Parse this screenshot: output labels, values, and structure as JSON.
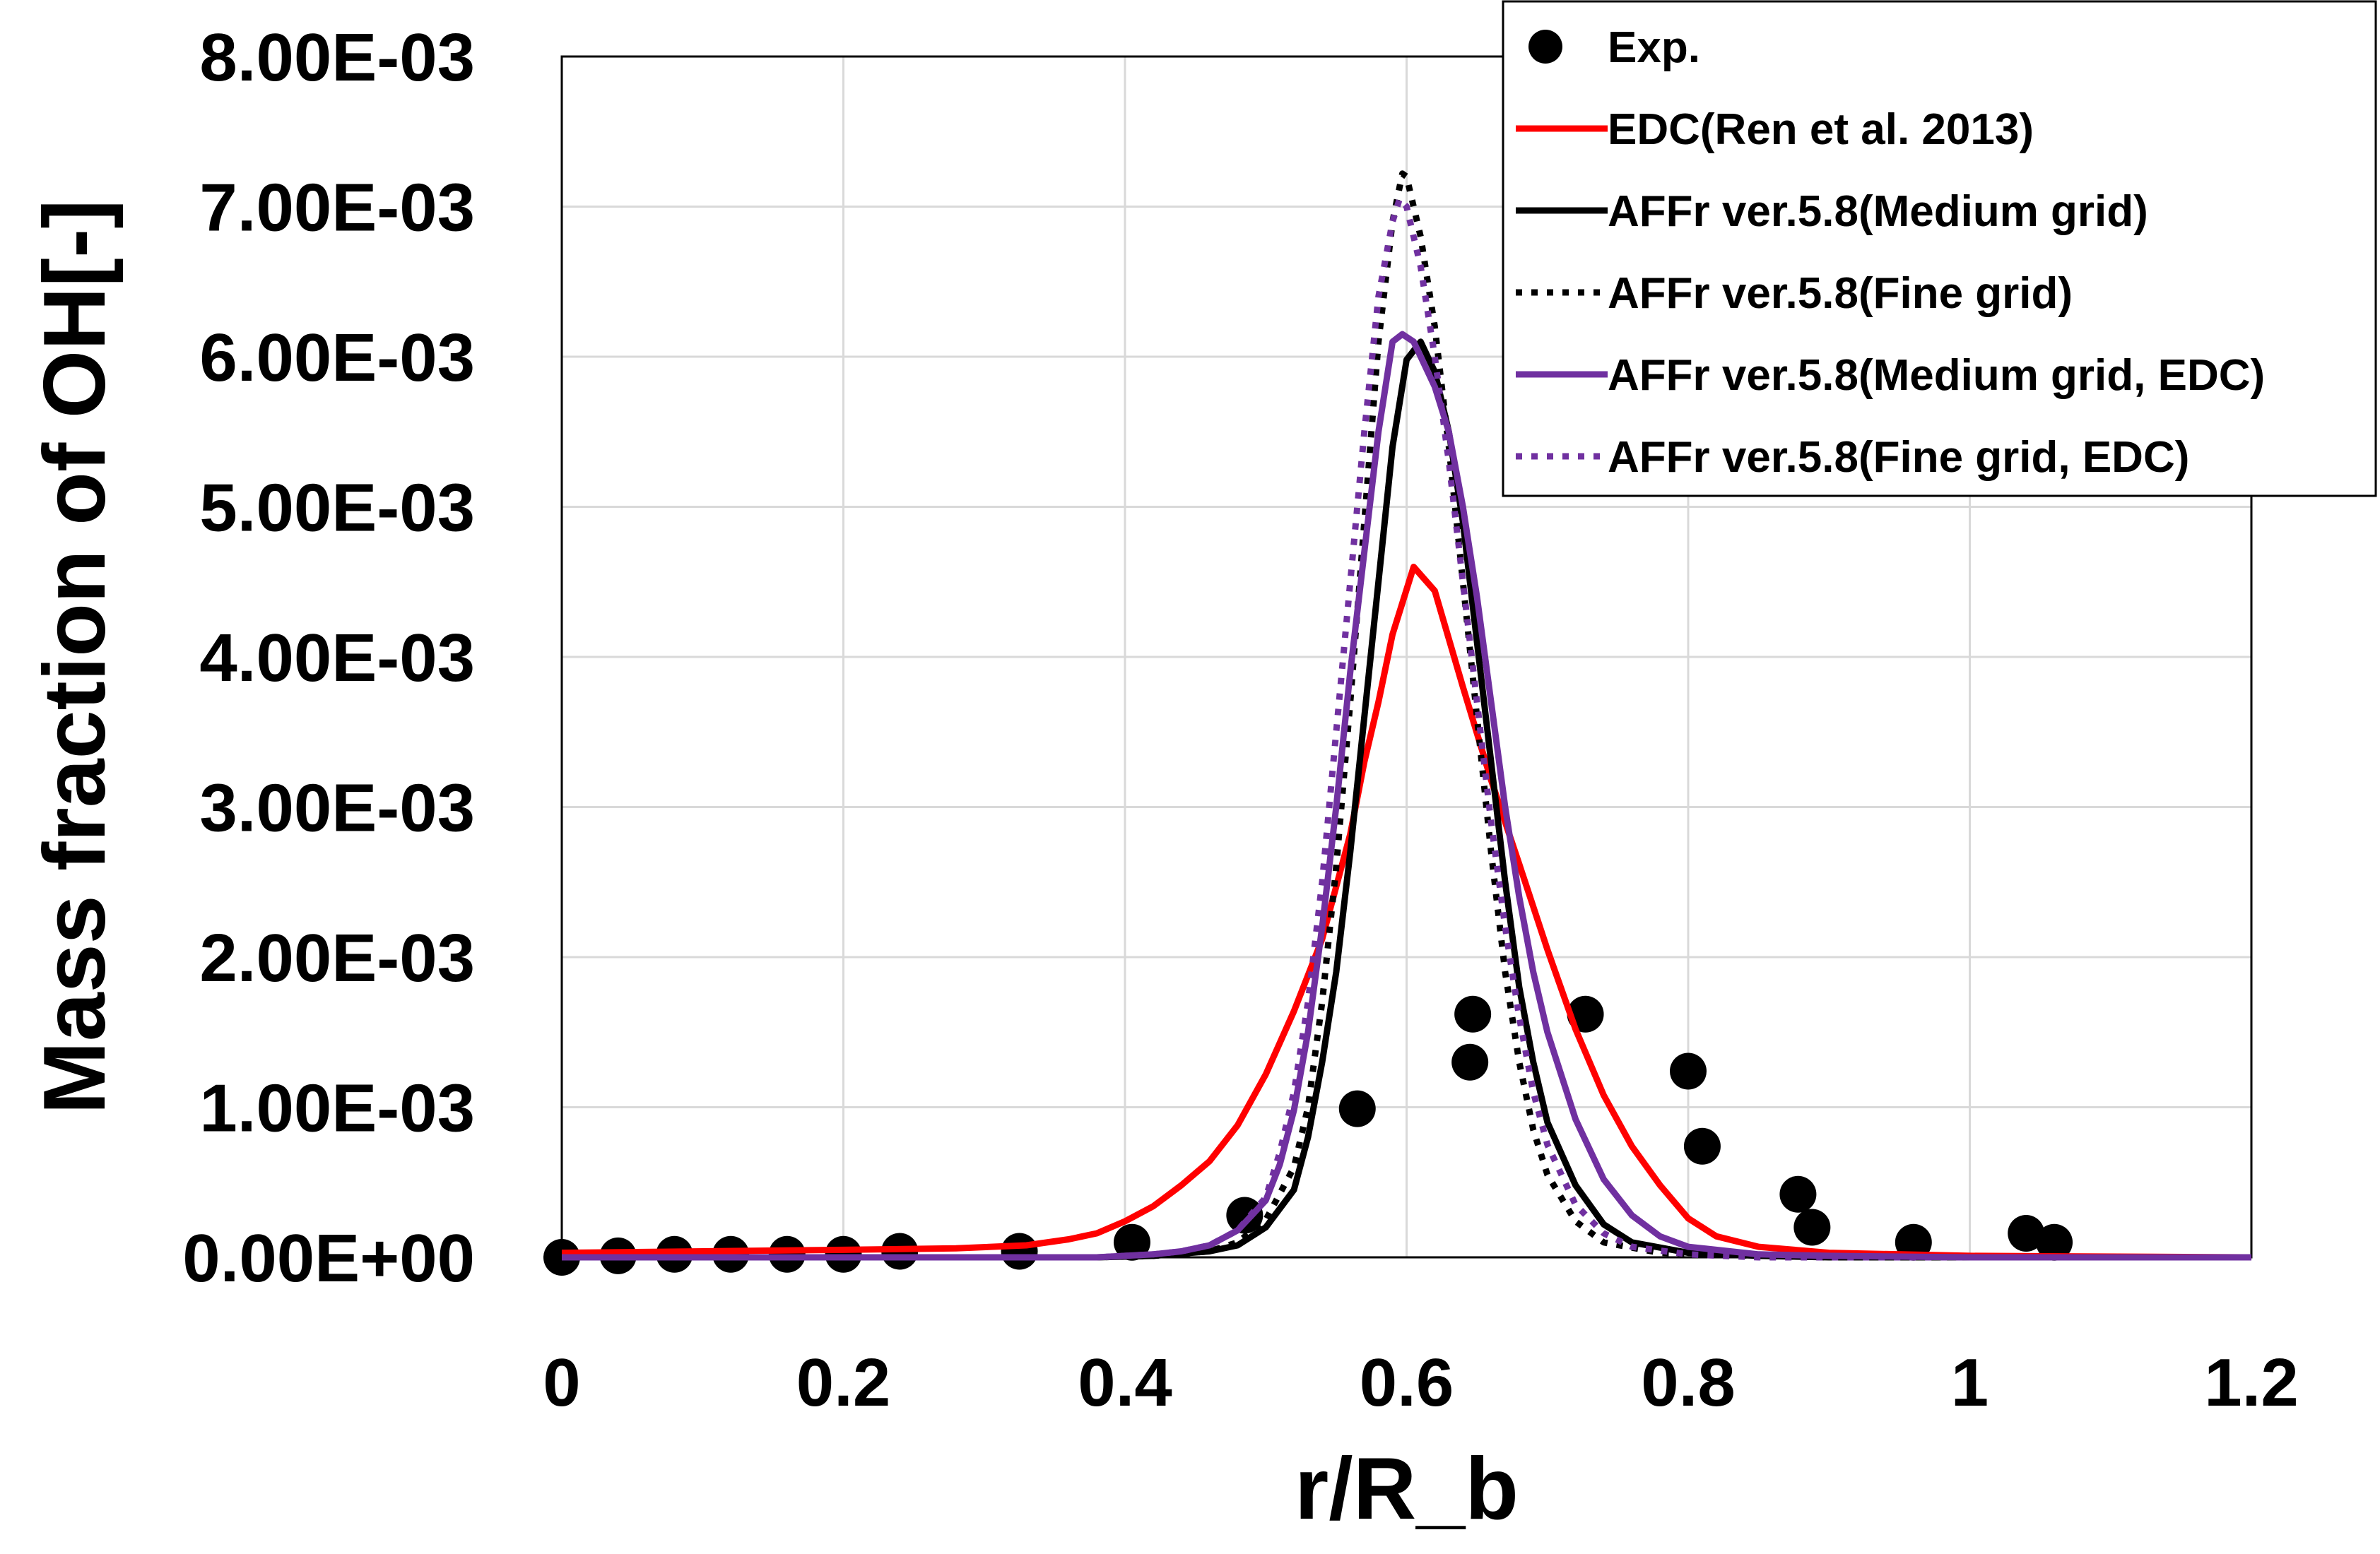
{
  "chart_data": {
    "type": "line",
    "title": "",
    "xlabel": "r/R_b",
    "ylabel": "Mass fraction of OH[-]",
    "xlim": [
      0,
      1.2
    ],
    "ylim": [
      0,
      0.008
    ],
    "xticks": [
      0,
      0.2,
      0.4,
      0.6,
      0.8,
      1,
      1.2
    ],
    "xtick_labels": [
      "0",
      "0.2",
      "0.4",
      "0.6",
      "0.8",
      "1",
      "1.2"
    ],
    "yticks": [
      0,
      0.001,
      0.002,
      0.003,
      0.004,
      0.005,
      0.006,
      0.007,
      0.008
    ],
    "ytick_labels": [
      "0.00E+00",
      "1.00E-03",
      "2.00E-03",
      "3.00E-03",
      "4.00E-03",
      "5.00E-03",
      "6.00E-03",
      "7.00E-03",
      "8.00E-03"
    ],
    "grid": true,
    "legend_position": "top-right",
    "series": [
      {
        "name": "Exp.",
        "kind": "scatter",
        "color": "#000000",
        "points": [
          [
            0.0,
            0.0
          ],
          [
            0.04,
            1e-05
          ],
          [
            0.08,
            2e-05
          ],
          [
            0.12,
            2e-05
          ],
          [
            0.16,
            2e-05
          ],
          [
            0.2,
            2e-05
          ],
          [
            0.24,
            4e-05
          ],
          [
            0.325,
            4e-05
          ],
          [
            0.405,
            0.0001
          ],
          [
            0.485,
            0.00028
          ],
          [
            0.565,
            0.00099
          ],
          [
            0.645,
            0.0013
          ],
          [
            0.647,
            0.00162
          ],
          [
            0.727,
            0.00162
          ],
          [
            0.8,
            0.00124
          ],
          [
            0.81,
            0.00074
          ],
          [
            0.878,
            0.00042
          ],
          [
            0.888,
            0.0002
          ],
          [
            0.96,
            0.0001
          ],
          [
            1.04,
            0.00016
          ],
          [
            1.06,
            0.0001
          ]
        ]
      },
      {
        "name": "EDC(Ren et al. 2013)",
        "kind": "line",
        "color": "#ff0000",
        "dash": "solid",
        "points": [
          [
            0.0,
            3e-05
          ],
          [
            0.1,
            4e-05
          ],
          [
            0.2,
            5e-05
          ],
          [
            0.28,
            6e-05
          ],
          [
            0.33,
            8e-05
          ],
          [
            0.36,
            0.00012
          ],
          [
            0.38,
            0.00016
          ],
          [
            0.4,
            0.00024
          ],
          [
            0.42,
            0.00034
          ],
          [
            0.44,
            0.00048
          ],
          [
            0.46,
            0.00064
          ],
          [
            0.48,
            0.00088
          ],
          [
            0.5,
            0.00122
          ],
          [
            0.52,
            0.00164
          ],
          [
            0.54,
            0.00212
          ],
          [
            0.56,
            0.00282
          ],
          [
            0.57,
            0.0033
          ],
          [
            0.58,
            0.0037
          ],
          [
            0.59,
            0.00415
          ],
          [
            0.605,
            0.0046
          ],
          [
            0.62,
            0.00444
          ],
          [
            0.64,
            0.0038
          ],
          [
            0.66,
            0.00318
          ],
          [
            0.68,
            0.00262
          ],
          [
            0.7,
            0.00205
          ],
          [
            0.72,
            0.00152
          ],
          [
            0.74,
            0.00108
          ],
          [
            0.76,
            0.00074
          ],
          [
            0.78,
            0.00048
          ],
          [
            0.8,
            0.00026
          ],
          [
            0.82,
            0.00014
          ],
          [
            0.85,
            7e-05
          ],
          [
            0.9,
            3e-05
          ],
          [
            1.0,
            1e-05
          ],
          [
            1.2,
            0.0
          ]
        ]
      },
      {
        "name": "AFFr ver.5.8(Medium grid)",
        "kind": "line",
        "color": "#000000",
        "dash": "solid",
        "points": [
          [
            0.0,
            0.0
          ],
          [
            0.38,
            0.0
          ],
          [
            0.42,
            1e-05
          ],
          [
            0.46,
            4e-05
          ],
          [
            0.48,
            8e-05
          ],
          [
            0.5,
            0.0002
          ],
          [
            0.52,
            0.00045
          ],
          [
            0.53,
            0.0008
          ],
          [
            0.54,
            0.0013
          ],
          [
            0.55,
            0.0019
          ],
          [
            0.56,
            0.0027
          ],
          [
            0.57,
            0.0036
          ],
          [
            0.58,
            0.0045
          ],
          [
            0.59,
            0.0054
          ],
          [
            0.6,
            0.00598
          ],
          [
            0.61,
            0.0061
          ],
          [
            0.62,
            0.0059
          ],
          [
            0.63,
            0.0055
          ],
          [
            0.64,
            0.0049
          ],
          [
            0.65,
            0.0041
          ],
          [
            0.66,
            0.0033
          ],
          [
            0.67,
            0.0025
          ],
          [
            0.68,
            0.0018
          ],
          [
            0.69,
            0.0013
          ],
          [
            0.7,
            0.0009
          ],
          [
            0.72,
            0.00048
          ],
          [
            0.74,
            0.00022
          ],
          [
            0.76,
            0.0001
          ],
          [
            0.8,
            3e-05
          ],
          [
            0.85,
            1e-05
          ],
          [
            0.9,
            0.0
          ],
          [
            1.2,
            0.0
          ]
        ]
      },
      {
        "name": "AFFr ver.5.8(Fine grid)",
        "kind": "line",
        "color": "#000000",
        "dash": "dotted",
        "points": [
          [
            0.0,
            0.0
          ],
          [
            0.38,
            0.0
          ],
          [
            0.42,
            1e-05
          ],
          [
            0.46,
            4e-05
          ],
          [
            0.48,
            0.0001
          ],
          [
            0.5,
            0.00025
          ],
          [
            0.52,
            0.0006
          ],
          [
            0.53,
            0.001
          ],
          [
            0.54,
            0.0017
          ],
          [
            0.55,
            0.0026
          ],
          [
            0.56,
            0.0037
          ],
          [
            0.57,
            0.0049
          ],
          [
            0.58,
            0.0061
          ],
          [
            0.59,
            0.0069
          ],
          [
            0.597,
            0.00722
          ],
          [
            0.6,
            0.0072
          ],
          [
            0.61,
            0.0068
          ],
          [
            0.62,
            0.0062
          ],
          [
            0.63,
            0.0054
          ],
          [
            0.64,
            0.0045
          ],
          [
            0.65,
            0.0036
          ],
          [
            0.66,
            0.0027
          ],
          [
            0.67,
            0.0019
          ],
          [
            0.68,
            0.0013
          ],
          [
            0.69,
            0.00085
          ],
          [
            0.7,
            0.00055
          ],
          [
            0.72,
            0.00024
          ],
          [
            0.74,
            0.0001
          ],
          [
            0.78,
            3e-05
          ],
          [
            0.85,
            1e-05
          ],
          [
            0.9,
            0.0
          ],
          [
            1.2,
            0.0
          ]
        ]
      },
      {
        "name": "AFFr ver.5.8(Medium grid, EDC)",
        "kind": "line",
        "color": "#7030a0",
        "dash": "solid",
        "points": [
          [
            0.0,
            0.0
          ],
          [
            0.38,
            0.0
          ],
          [
            0.42,
            2e-05
          ],
          [
            0.44,
            4e-05
          ],
          [
            0.46,
            8e-05
          ],
          [
            0.48,
            0.00018
          ],
          [
            0.5,
            0.00038
          ],
          [
            0.51,
            0.00062
          ],
          [
            0.52,
            0.00098
          ],
          [
            0.53,
            0.0015
          ],
          [
            0.54,
            0.0022
          ],
          [
            0.55,
            0.003
          ],
          [
            0.56,
            0.0039
          ],
          [
            0.57,
            0.0047
          ],
          [
            0.58,
            0.0055
          ],
          [
            0.59,
            0.0061
          ],
          [
            0.597,
            0.00615
          ],
          [
            0.605,
            0.0061
          ],
          [
            0.62,
            0.0058
          ],
          [
            0.63,
            0.0055
          ],
          [
            0.64,
            0.005
          ],
          [
            0.65,
            0.0044
          ],
          [
            0.66,
            0.0037
          ],
          [
            0.67,
            0.003
          ],
          [
            0.68,
            0.0024
          ],
          [
            0.69,
            0.0019
          ],
          [
            0.7,
            0.0015
          ],
          [
            0.72,
            0.00092
          ],
          [
            0.74,
            0.00052
          ],
          [
            0.76,
            0.00028
          ],
          [
            0.78,
            0.00014
          ],
          [
            0.8,
            7e-05
          ],
          [
            0.85,
            2e-05
          ],
          [
            0.9,
            1e-05
          ],
          [
            1.0,
            0.0
          ],
          [
            1.2,
            0.0
          ]
        ]
      },
      {
        "name": "AFFr ver.5.8(Fine grid, EDC)",
        "kind": "line",
        "color": "#7030a0",
        "dash": "dotted",
        "points": [
          [
            0.0,
            0.0
          ],
          [
            0.38,
            0.0
          ],
          [
            0.42,
            2e-05
          ],
          [
            0.44,
            4e-05
          ],
          [
            0.46,
            8e-05
          ],
          [
            0.48,
            0.00018
          ],
          [
            0.5,
            0.0004
          ],
          [
            0.51,
            0.0007
          ],
          [
            0.52,
            0.0011
          ],
          [
            0.53,
            0.0017
          ],
          [
            0.54,
            0.0025
          ],
          [
            0.55,
            0.0035
          ],
          [
            0.56,
            0.0045
          ],
          [
            0.57,
            0.0055
          ],
          [
            0.58,
            0.0064
          ],
          [
            0.59,
            0.0069
          ],
          [
            0.595,
            0.00705
          ],
          [
            0.6,
            0.007
          ],
          [
            0.61,
            0.0066
          ],
          [
            0.62,
            0.006
          ],
          [
            0.63,
            0.0053
          ],
          [
            0.64,
            0.0045
          ],
          [
            0.65,
            0.0037
          ],
          [
            0.66,
            0.0029
          ],
          [
            0.67,
            0.0022
          ],
          [
            0.68,
            0.0016
          ],
          [
            0.69,
            0.0011
          ],
          [
            0.7,
            0.00075
          ],
          [
            0.72,
            0.00035
          ],
          [
            0.74,
            0.00016
          ],
          [
            0.76,
            7e-05
          ],
          [
            0.8,
            2e-05
          ],
          [
            0.85,
            0.0
          ],
          [
            1.2,
            0.0
          ]
        ]
      }
    ]
  }
}
